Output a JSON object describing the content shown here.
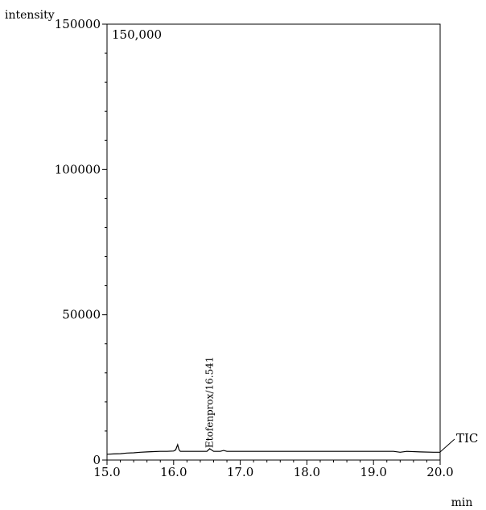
{
  "chart_data": {
    "type": "line",
    "ylabel": "intensity",
    "xlabel": "min",
    "full_scale_label": "150,000",
    "trace_label": "TIC",
    "xlim": [
      15.0,
      20.0
    ],
    "ylim": [
      0,
      150000
    ],
    "x_ticks": [
      "15.0",
      "16.0",
      "17.0",
      "18.0",
      "19.0",
      "20.0"
    ],
    "y_ticks": [
      "0",
      "50000",
      "100000",
      "150000"
    ],
    "grid": false,
    "legend": "none",
    "annotations": [
      {
        "text": "Etofenprox/16.541",
        "x": 16.541
      }
    ],
    "series": [
      {
        "x": [
          15.0,
          15.1,
          15.2,
          15.3,
          15.4,
          15.5,
          15.6,
          15.7,
          15.8,
          15.9,
          16.0,
          16.03,
          16.06,
          16.08,
          16.1,
          16.2,
          16.3,
          16.4,
          16.5,
          16.541,
          16.6,
          16.7,
          16.75,
          16.8,
          17.0,
          17.5,
          18.0,
          18.5,
          19.0,
          19.3,
          19.4,
          19.5,
          19.7,
          19.9,
          20.0
        ],
        "y": [
          2000,
          2100,
          2200,
          2400,
          2500,
          2700,
          2800,
          2900,
          3000,
          3000,
          3100,
          3500,
          5300,
          3600,
          3000,
          3000,
          3000,
          3000,
          3000,
          3900,
          3000,
          3000,
          3300,
          3000,
          3000,
          3000,
          3000,
          3000,
          3000,
          3000,
          2700,
          3000,
          2800,
          2700,
          2700
        ]
      }
    ]
  }
}
